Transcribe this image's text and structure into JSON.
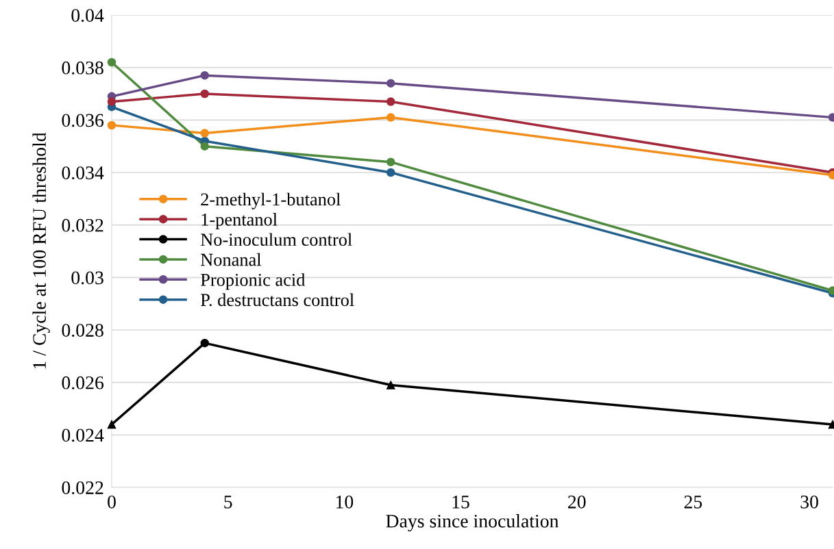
{
  "chart_data": {
    "type": "line",
    "xlabel": "Days since inoculation",
    "ylabel": "1 / Cycle at 100 RFU threshold",
    "x": [
      0,
      4,
      12,
      31
    ],
    "series": [
      {
        "name": "2-methyl-1-butanol",
        "color": "#f28e1c",
        "values": [
          0.0358,
          0.0355,
          0.0361,
          0.0339
        ]
      },
      {
        "name": "1-pentanol",
        "color": "#a2283a",
        "values": [
          0.0367,
          0.037,
          0.0367,
          0.034
        ]
      },
      {
        "name": "No-inoculum control",
        "color": "#000000",
        "values": [
          0.0244,
          0.0275,
          0.0259,
          0.0244
        ],
        "marker": [
          "triangle",
          "circle",
          "triangle",
          "triangle"
        ]
      },
      {
        "name": "Nonanal",
        "color": "#4f8a3e",
        "values": [
          0.0382,
          0.035,
          0.0344,
          0.0295
        ]
      },
      {
        "name": "Propionic acid",
        "color": "#664b86",
        "values": [
          0.0369,
          0.0377,
          0.0374,
          0.0361
        ]
      },
      {
        "name": "P. destructans control",
        "color": "#235f8c",
        "values": [
          0.0365,
          0.0352,
          0.034,
          0.0294
        ]
      }
    ],
    "xlim": [
      0,
      31
    ],
    "xticks": [
      0,
      5,
      10,
      15,
      20,
      25,
      30
    ],
    "ylim": [
      0.022,
      0.04
    ],
    "yticks": [
      0.022,
      0.024,
      0.026,
      0.028,
      0.03,
      0.032,
      0.034,
      0.036,
      0.038,
      0.04
    ],
    "grid": "y",
    "legend": "left",
    "marker": "circle",
    "line_style": "solid"
  }
}
